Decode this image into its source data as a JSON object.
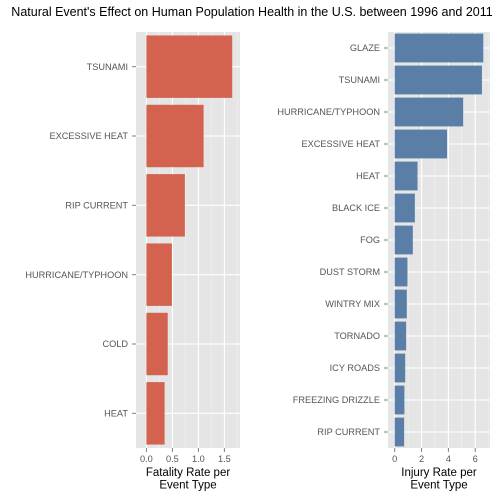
{
  "chart": {
    "title": "Natural Event's Effect on Human Population Health in the U.S. between 1996 and 2011"
  },
  "colors": {
    "fatality_bar": "#d3624f",
    "injury_bar": "#5a7ea6",
    "panel_bg": "#e5e5e5",
    "grid": "#ffffff"
  },
  "chart_data": [
    {
      "type": "bar",
      "orientation": "horizontal",
      "categories": [
        "TSUNAMI",
        "EXCESSIVE HEAT",
        "RIP CURRENT",
        "HURRICANE/TYPHOON",
        "COLD",
        "HEAT"
      ],
      "values": [
        1.65,
        1.1,
        0.74,
        0.49,
        0.41,
        0.35
      ],
      "xlabel": "Fatality Rate per\nEvent Type",
      "ylabel": "",
      "xlim": [
        -0.2,
        1.8
      ],
      "xticks": [
        "0.0",
        "0.5",
        "1.0",
        "1.5"
      ],
      "grid": true,
      "legend": "none"
    },
    {
      "type": "bar",
      "orientation": "horizontal",
      "categories": [
        "GLAZE",
        "TSUNAMI",
        "HURRICANE/TYPHOON",
        "EXCESSIVE HEAT",
        "HEAT",
        "BLACK ICE",
        "FOG",
        "DUST STORM",
        "WINTRY MIX",
        "TORNADO",
        "ICY ROADS",
        "FREEZING DRIZZLE",
        "RIP CURRENT"
      ],
      "values": [
        6.6,
        6.5,
        5.1,
        3.9,
        1.7,
        1.5,
        1.35,
        0.95,
        0.9,
        0.85,
        0.78,
        0.72,
        0.7
      ],
      "xlabel": "Injury Rate per\nEvent Type",
      "ylabel": "",
      "xlim": [
        -0.5,
        7.1
      ],
      "xticks": [
        "0",
        "2",
        "4",
        "6"
      ],
      "grid": true,
      "legend": "none"
    }
  ]
}
